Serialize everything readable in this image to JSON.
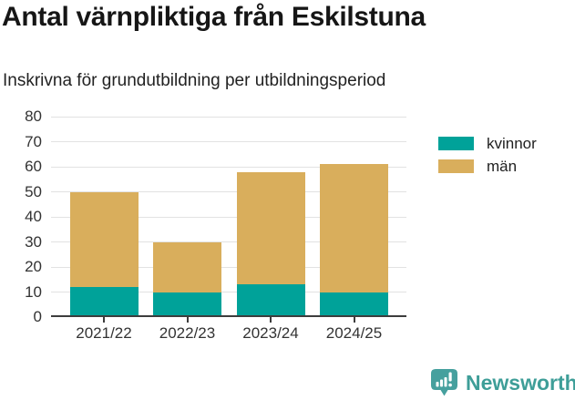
{
  "title": "Antal värnpliktiga från Eskilstuna",
  "subtitle": "Inskrivna för grundutbildning per utbildningsperiod",
  "chart_data": {
    "type": "bar",
    "stacked": true,
    "title": "Antal värnpliktiga från Eskilstuna",
    "subtitle": "Inskrivna för grundutbildning per utbildningsperiod",
    "categories": [
      "2021/22",
      "2022/23",
      "2023/24",
      "2024/25"
    ],
    "series": [
      {
        "name": "kvinnor",
        "key": "kvinnor",
        "color": "#00a299",
        "values": [
          12,
          10,
          13,
          10
        ]
      },
      {
        "name": "män",
        "key": "man",
        "color": "#d9ae5c",
        "values": [
          38,
          20,
          45,
          51
        ]
      }
    ],
    "totals": [
      50,
      30,
      58,
      61
    ],
    "xlabel": "",
    "ylabel": "",
    "ylim": [
      0,
      80
    ],
    "yticks": [
      0,
      10,
      20,
      30,
      40,
      50,
      60,
      70,
      80
    ],
    "grid": true,
    "legend_position": "right"
  },
  "branding": {
    "label": "Newsworthy",
    "icon": "newsworthy-chart-bubble-icon",
    "color": "#3e9e98"
  },
  "colors": {
    "kvinnor": "#00a299",
    "man": "#d9ae5c",
    "title_text": "#161616",
    "axis_text": "#333333",
    "gridline": "#e2e2e2",
    "axis_line": "#3d3d3d",
    "background": "#ffffff"
  }
}
